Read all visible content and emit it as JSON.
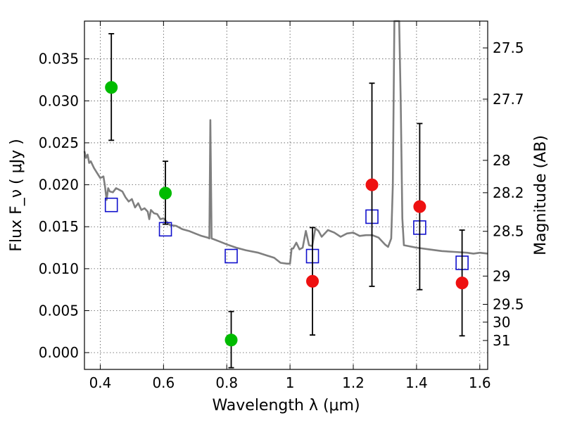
{
  "chart_data": {
    "type": "scatter",
    "xlabel": "Wavelength  λ (μm)",
    "ylabel": "Flux  F_ν  ( μJy )",
    "y2label": "Magnitude (AB)",
    "xlim": [
      0.35,
      1.625
    ],
    "ylim": [
      -0.002,
      0.0395
    ],
    "grid": true,
    "x_ticks": [
      0.4,
      0.6,
      0.8,
      1.0,
      1.2,
      1.4,
      1.6
    ],
    "x_tick_labels": [
      "0.4",
      "0.6",
      "0.8",
      "1",
      "1.2",
      "1.4",
      "1.6"
    ],
    "y_ticks": [
      0.0,
      0.005,
      0.01,
      0.015,
      0.02,
      0.025,
      0.03,
      0.035
    ],
    "y_tick_labels": [
      "0.000",
      "0.005",
      "0.010",
      "0.015",
      "0.020",
      "0.025",
      "0.030",
      "0.035"
    ],
    "y2_ticks": [
      {
        "label": "27.5",
        "mag": 27.5
      },
      {
        "label": "27.7",
        "mag": 27.7
      },
      {
        "label": "28",
        "mag": 28.0
      },
      {
        "label": "28.2",
        "mag": 28.2
      },
      {
        "label": "28.5",
        "mag": 28.5
      },
      {
        "label": "29",
        "mag": 29.0
      },
      {
        "label": "29.5",
        "mag": 29.5
      },
      {
        "label": "30",
        "mag": 30.0
      },
      {
        "label": "31",
        "mag": 31.0
      }
    ],
    "series": [
      {
        "marker": "circle",
        "color": "#00bb00",
        "points": [
          {
            "x": 0.435,
            "y": 0.0316,
            "err_lo": 0.0253,
            "err_hi": 0.038
          },
          {
            "x": 0.606,
            "y": 0.019,
            "err_lo": 0.0153,
            "err_hi": 0.0228
          },
          {
            "x": 0.814,
            "y": 0.0015,
            "err_lo": -0.0018,
            "err_hi": 0.0049
          }
        ]
      },
      {
        "marker": "circle",
        "color": "#ee1111",
        "points": [
          {
            "x": 1.071,
            "y": 0.0085,
            "err_lo": 0.0021,
            "err_hi": 0.0149
          },
          {
            "x": 1.259,
            "y": 0.02,
            "err_lo": 0.0079,
            "err_hi": 0.0321
          },
          {
            "x": 1.41,
            "y": 0.0174,
            "err_lo": 0.0075,
            "err_hi": 0.0273
          },
          {
            "x": 1.544,
            "y": 0.0083,
            "err_lo": 0.002,
            "err_hi": 0.0146
          }
        ]
      },
      {
        "marker": "open-square",
        "color": "#1010cc",
        "points": [
          {
            "x": 0.435,
            "y": 0.0176
          },
          {
            "x": 0.606,
            "y": 0.0147
          },
          {
            "x": 0.814,
            "y": 0.0115
          },
          {
            "x": 1.071,
            "y": 0.0115
          },
          {
            "x": 1.259,
            "y": 0.0162
          },
          {
            "x": 1.41,
            "y": 0.0149
          },
          {
            "x": 1.544,
            "y": 0.0107
          }
        ]
      },
      {
        "marker": "line",
        "color": "#7f7f7f",
        "points": [
          [
            0.35,
            0.024
          ],
          [
            0.355,
            0.0232
          ],
          [
            0.36,
            0.0236
          ],
          [
            0.365,
            0.0226
          ],
          [
            0.37,
            0.0228
          ],
          [
            0.38,
            0.022
          ],
          [
            0.39,
            0.0214
          ],
          [
            0.4,
            0.0208
          ],
          [
            0.41,
            0.021
          ],
          [
            0.415,
            0.0198
          ],
          [
            0.42,
            0.0182
          ],
          [
            0.425,
            0.0196
          ],
          [
            0.43,
            0.0192
          ],
          [
            0.44,
            0.0191
          ],
          [
            0.45,
            0.0196
          ],
          [
            0.46,
            0.0194
          ],
          [
            0.47,
            0.0192
          ],
          [
            0.48,
            0.0185
          ],
          [
            0.49,
            0.018
          ],
          [
            0.5,
            0.0183
          ],
          [
            0.51,
            0.0173
          ],
          [
            0.52,
            0.0178
          ],
          [
            0.53,
            0.017
          ],
          [
            0.54,
            0.0172
          ],
          [
            0.55,
            0.0168
          ],
          [
            0.555,
            0.0159
          ],
          [
            0.56,
            0.017
          ],
          [
            0.57,
            0.0166
          ],
          [
            0.58,
            0.0165
          ],
          [
            0.59,
            0.0159
          ],
          [
            0.6,
            0.016
          ],
          [
            0.61,
            0.0156
          ],
          [
            0.62,
            0.0152
          ],
          [
            0.64,
            0.0151
          ],
          [
            0.66,
            0.0147
          ],
          [
            0.68,
            0.0145
          ],
          [
            0.7,
            0.0142
          ],
          [
            0.72,
            0.0139
          ],
          [
            0.74,
            0.0137
          ],
          [
            0.745,
            0.0136
          ],
          [
            0.748,
            0.0277
          ],
          [
            0.752,
            0.0136
          ],
          [
            0.78,
            0.0132
          ],
          [
            0.8,
            0.0129
          ],
          [
            0.83,
            0.0125
          ],
          [
            0.86,
            0.0122
          ],
          [
            0.9,
            0.0119
          ],
          [
            0.95,
            0.0113
          ],
          [
            0.97,
            0.0107
          ],
          [
            0.99,
            0.0106
          ],
          [
            1.0,
            0.0106
          ],
          [
            1.005,
            0.0124
          ],
          [
            1.01,
            0.0124
          ],
          [
            1.02,
            0.0131
          ],
          [
            1.03,
            0.0123
          ],
          [
            1.04,
            0.0125
          ],
          [
            1.05,
            0.0145
          ],
          [
            1.06,
            0.0128
          ],
          [
            1.07,
            0.0127
          ],
          [
            1.08,
            0.0148
          ],
          [
            1.09,
            0.0145
          ],
          [
            1.1,
            0.0138
          ],
          [
            1.12,
            0.0146
          ],
          [
            1.14,
            0.0143
          ],
          [
            1.16,
            0.0138
          ],
          [
            1.18,
            0.0142
          ],
          [
            1.2,
            0.0143
          ],
          [
            1.22,
            0.0139
          ],
          [
            1.24,
            0.014
          ],
          [
            1.26,
            0.014
          ],
          [
            1.28,
            0.0137
          ],
          [
            1.3,
            0.0129
          ],
          [
            1.31,
            0.0126
          ],
          [
            1.32,
            0.0136
          ],
          [
            1.325,
            0.02
          ],
          [
            1.33,
            0.0395
          ],
          [
            1.345,
            0.0395
          ],
          [
            1.35,
            0.03
          ],
          [
            1.355,
            0.016
          ],
          [
            1.36,
            0.0128
          ],
          [
            1.4,
            0.0125
          ],
          [
            1.44,
            0.0123
          ],
          [
            1.48,
            0.0121
          ],
          [
            1.52,
            0.012
          ],
          [
            1.56,
            0.0119
          ],
          [
            1.58,
            0.0118
          ],
          [
            1.6,
            0.0119
          ],
          [
            1.625,
            0.0118
          ]
        ]
      }
    ]
  }
}
